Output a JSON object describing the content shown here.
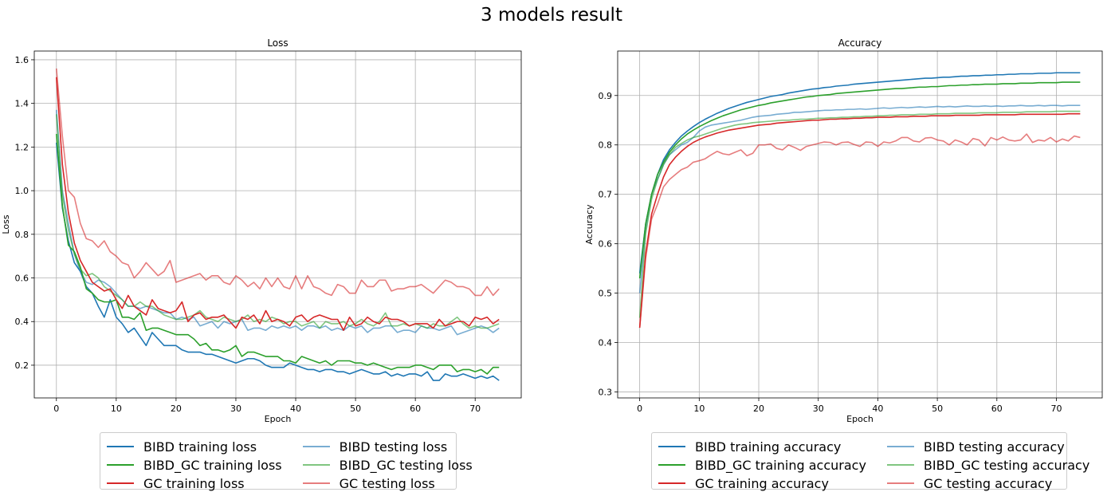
{
  "figure_title": "3 models result",
  "chart_data": [
    {
      "type": "line",
      "title": "Loss",
      "xlabel": "Epoch",
      "ylabel": "Loss",
      "xlim": [
        -3.7,
        77.7
      ],
      "ylim": [
        0.05,
        1.64
      ],
      "xticks": [
        0,
        10,
        20,
        30,
        40,
        50,
        60,
        70
      ],
      "yticks": [
        0.2,
        0.4,
        0.6,
        0.8,
        1.0,
        1.2,
        1.4,
        1.6
      ],
      "ytick_labels": [
        "0.2",
        "0.4",
        "0.6",
        "0.8",
        "1.0",
        "1.2",
        "1.4",
        "1.6"
      ],
      "grid": true,
      "legend_placement": "below plot, 2 columns",
      "series": [
        {
          "name": "BIBD training loss",
          "color": "#1f77b4",
          "alpha": 1.0,
          "values": [
            1.22,
            0.92,
            0.77,
            0.67,
            0.63,
            0.56,
            0.53,
            0.47,
            0.42,
            0.5,
            0.42,
            0.39,
            0.35,
            0.37,
            0.33,
            0.29,
            0.35,
            0.32,
            0.29,
            0.29,
            0.29,
            0.27,
            0.26,
            0.26,
            0.26,
            0.25,
            0.25,
            0.24,
            0.23,
            0.22,
            0.21,
            0.22,
            0.23,
            0.23,
            0.22,
            0.2,
            0.19,
            0.19,
            0.19,
            0.21,
            0.2,
            0.19,
            0.18,
            0.18,
            0.17,
            0.18,
            0.18,
            0.17,
            0.17,
            0.16,
            0.17,
            0.18,
            0.17,
            0.16,
            0.16,
            0.17,
            0.15,
            0.16,
            0.15,
            0.16,
            0.16,
            0.15,
            0.17,
            0.13,
            0.13,
            0.16,
            0.15,
            0.15,
            0.16,
            0.15,
            0.14,
            0.15,
            0.14,
            0.15,
            0.13
          ]
        },
        {
          "name": "BIBD_GC training loss",
          "color": "#2ca02c",
          "alpha": 1.0,
          "values": [
            1.26,
            0.93,
            0.75,
            0.72,
            0.65,
            0.55,
            0.53,
            0.5,
            0.49,
            0.49,
            0.5,
            0.42,
            0.42,
            0.41,
            0.44,
            0.36,
            0.37,
            0.37,
            0.36,
            0.35,
            0.34,
            0.34,
            0.34,
            0.32,
            0.29,
            0.3,
            0.27,
            0.27,
            0.26,
            0.27,
            0.29,
            0.24,
            0.26,
            0.26,
            0.25,
            0.24,
            0.24,
            0.24,
            0.22,
            0.22,
            0.21,
            0.24,
            0.23,
            0.22,
            0.21,
            0.22,
            0.2,
            0.22,
            0.22,
            0.22,
            0.21,
            0.21,
            0.2,
            0.21,
            0.2,
            0.19,
            0.18,
            0.19,
            0.19,
            0.19,
            0.2,
            0.2,
            0.19,
            0.18,
            0.2,
            0.2,
            0.2,
            0.17,
            0.18,
            0.18,
            0.17,
            0.18,
            0.16,
            0.19,
            0.19
          ]
        },
        {
          "name": "GC training loss",
          "color": "#d62728",
          "alpha": 1.0,
          "values": [
            1.52,
            1.12,
            0.9,
            0.76,
            0.68,
            0.63,
            0.58,
            0.56,
            0.54,
            0.55,
            0.5,
            0.46,
            0.52,
            0.47,
            0.45,
            0.43,
            0.5,
            0.46,
            0.45,
            0.44,
            0.45,
            0.49,
            0.4,
            0.43,
            0.44,
            0.41,
            0.42,
            0.42,
            0.43,
            0.4,
            0.37,
            0.42,
            0.41,
            0.43,
            0.39,
            0.45,
            0.4,
            0.41,
            0.4,
            0.38,
            0.42,
            0.43,
            0.4,
            0.42,
            0.43,
            0.42,
            0.41,
            0.41,
            0.36,
            0.42,
            0.38,
            0.39,
            0.42,
            0.4,
            0.39,
            0.42,
            0.41,
            0.41,
            0.4,
            0.38,
            0.39,
            0.39,
            0.39,
            0.37,
            0.41,
            0.38,
            0.39,
            0.4,
            0.4,
            0.38,
            0.42,
            0.41,
            0.42,
            0.39,
            0.41
          ]
        },
        {
          "name": "BIBD testing loss",
          "color": "#1f77b4",
          "alpha": 0.6,
          "values": [
            1.37,
            1.0,
            0.85,
            0.71,
            0.63,
            0.58,
            0.57,
            0.59,
            0.58,
            0.56,
            0.53,
            0.5,
            0.47,
            0.47,
            0.46,
            0.47,
            0.46,
            0.45,
            0.44,
            0.44,
            0.41,
            0.42,
            0.41,
            0.42,
            0.38,
            0.39,
            0.4,
            0.37,
            0.4,
            0.39,
            0.4,
            0.41,
            0.36,
            0.37,
            0.37,
            0.36,
            0.38,
            0.37,
            0.38,
            0.37,
            0.38,
            0.36,
            0.38,
            0.38,
            0.37,
            0.38,
            0.36,
            0.37,
            0.36,
            0.38,
            0.37,
            0.38,
            0.35,
            0.37,
            0.37,
            0.38,
            0.38,
            0.35,
            0.36,
            0.36,
            0.35,
            0.38,
            0.37,
            0.37,
            0.36,
            0.37,
            0.38,
            0.34,
            0.35,
            0.36,
            0.37,
            0.38,
            0.37,
            0.35,
            0.37
          ]
        },
        {
          "name": "BIBD_GC testing loss",
          "color": "#2ca02c",
          "alpha": 0.6,
          "values": [
            1.35,
            0.98,
            0.82,
            0.71,
            0.64,
            0.61,
            0.62,
            0.6,
            0.56,
            0.54,
            0.52,
            0.5,
            0.47,
            0.47,
            0.49,
            0.47,
            0.47,
            0.45,
            0.43,
            0.42,
            0.41,
            0.41,
            0.42,
            0.43,
            0.45,
            0.42,
            0.41,
            0.4,
            0.42,
            0.41,
            0.4,
            0.41,
            0.43,
            0.4,
            0.41,
            0.4,
            0.42,
            0.41,
            0.39,
            0.4,
            0.4,
            0.38,
            0.39,
            0.4,
            0.37,
            0.4,
            0.39,
            0.39,
            0.4,
            0.38,
            0.39,
            0.41,
            0.39,
            0.38,
            0.4,
            0.44,
            0.38,
            0.38,
            0.39,
            0.38,
            0.39,
            0.38,
            0.37,
            0.39,
            0.38,
            0.38,
            0.4,
            0.42,
            0.39,
            0.37,
            0.38,
            0.37,
            0.37,
            0.38,
            0.39
          ]
        },
        {
          "name": "GC testing loss",
          "color": "#d62728",
          "alpha": 0.6,
          "values": [
            1.56,
            1.25,
            1.0,
            0.97,
            0.85,
            0.78,
            0.77,
            0.74,
            0.77,
            0.72,
            0.7,
            0.67,
            0.66,
            0.6,
            0.63,
            0.67,
            0.64,
            0.61,
            0.63,
            0.68,
            0.58,
            0.59,
            0.6,
            0.61,
            0.62,
            0.59,
            0.61,
            0.61,
            0.58,
            0.57,
            0.61,
            0.59,
            0.56,
            0.58,
            0.55,
            0.6,
            0.56,
            0.6,
            0.56,
            0.55,
            0.61,
            0.55,
            0.61,
            0.56,
            0.55,
            0.53,
            0.52,
            0.57,
            0.56,
            0.53,
            0.53,
            0.59,
            0.56,
            0.56,
            0.59,
            0.59,
            0.54,
            0.55,
            0.55,
            0.56,
            0.56,
            0.57,
            0.55,
            0.53,
            0.56,
            0.59,
            0.58,
            0.56,
            0.56,
            0.55,
            0.52,
            0.52,
            0.56,
            0.52,
            0.55
          ]
        }
      ]
    },
    {
      "type": "line",
      "title": "Accuracy",
      "xlabel": "Epoch",
      "ylabel": "Accuracy",
      "xlim": [
        -3.7,
        77.7
      ],
      "ylim": [
        0.288,
        0.99
      ],
      "xticks": [
        0,
        10,
        20,
        30,
        40,
        50,
        60,
        70
      ],
      "yticks": [
        0.3,
        0.4,
        0.5,
        0.6,
        0.7,
        0.8,
        0.9
      ],
      "ytick_labels": [
        "0.3",
        "0.4",
        "0.5",
        "0.6",
        "0.7",
        "0.8",
        "0.9"
      ],
      "grid": true,
      "legend_placement": "below plot, 2 columns",
      "series": [
        {
          "name": "BIBD training accuracy",
          "color": "#1f77b4",
          "alpha": 1.0,
          "values": [
            0.54,
            0.64,
            0.7,
            0.74,
            0.77,
            0.79,
            0.805,
            0.818,
            0.828,
            0.837,
            0.845,
            0.852,
            0.858,
            0.864,
            0.869,
            0.874,
            0.878,
            0.882,
            0.886,
            0.889,
            0.892,
            0.895,
            0.898,
            0.9,
            0.902,
            0.905,
            0.907,
            0.909,
            0.911,
            0.913,
            0.914,
            0.916,
            0.917,
            0.919,
            0.92,
            0.921,
            0.923,
            0.924,
            0.925,
            0.926,
            0.927,
            0.928,
            0.929,
            0.93,
            0.931,
            0.932,
            0.933,
            0.934,
            0.935,
            0.935,
            0.936,
            0.937,
            0.937,
            0.938,
            0.939,
            0.939,
            0.94,
            0.94,
            0.941,
            0.941,
            0.942,
            0.942,
            0.943,
            0.943,
            0.944,
            0.944,
            0.944,
            0.945,
            0.945,
            0.945,
            0.946,
            0.946,
            0.946,
            0.946,
            0.946
          ]
        },
        {
          "name": "BIBD_GC training accuracy",
          "color": "#2ca02c",
          "alpha": 1.0,
          "values": [
            0.53,
            0.64,
            0.7,
            0.74,
            0.765,
            0.785,
            0.8,
            0.812,
            0.822,
            0.83,
            0.837,
            0.843,
            0.849,
            0.854,
            0.859,
            0.863,
            0.867,
            0.871,
            0.874,
            0.877,
            0.88,
            0.882,
            0.885,
            0.887,
            0.889,
            0.891,
            0.893,
            0.895,
            0.897,
            0.898,
            0.9,
            0.901,
            0.902,
            0.904,
            0.905,
            0.906,
            0.907,
            0.908,
            0.909,
            0.91,
            0.911,
            0.912,
            0.913,
            0.914,
            0.914,
            0.915,
            0.916,
            0.917,
            0.917,
            0.918,
            0.918,
            0.919,
            0.92,
            0.92,
            0.921,
            0.921,
            0.922,
            0.922,
            0.923,
            0.923,
            0.923,
            0.924,
            0.924,
            0.924,
            0.925,
            0.925,
            0.925,
            0.926,
            0.926,
            0.926,
            0.926,
            0.927,
            0.927,
            0.927,
            0.927
          ]
        },
        {
          "name": "GC training accuracy",
          "color": "#d62728",
          "alpha": 1.0,
          "values": [
            0.43,
            0.58,
            0.66,
            0.7,
            0.735,
            0.76,
            0.775,
            0.787,
            0.797,
            0.805,
            0.811,
            0.816,
            0.82,
            0.824,
            0.827,
            0.83,
            0.832,
            0.834,
            0.836,
            0.838,
            0.84,
            0.841,
            0.842,
            0.844,
            0.845,
            0.846,
            0.847,
            0.848,
            0.849,
            0.85,
            0.85,
            0.851,
            0.852,
            0.852,
            0.853,
            0.853,
            0.854,
            0.854,
            0.855,
            0.855,
            0.856,
            0.856,
            0.856,
            0.857,
            0.857,
            0.857,
            0.858,
            0.858,
            0.858,
            0.859,
            0.859,
            0.859,
            0.859,
            0.86,
            0.86,
            0.86,
            0.86,
            0.86,
            0.861,
            0.861,
            0.861,
            0.861,
            0.861,
            0.861,
            0.862,
            0.862,
            0.862,
            0.862,
            0.862,
            0.862,
            0.862,
            0.862,
            0.863,
            0.863,
            0.863
          ]
        },
        {
          "name": "BIBD testing accuracy",
          "color": "#1f77b4",
          "alpha": 0.6,
          "values": [
            0.5,
            0.63,
            0.7,
            0.73,
            0.76,
            0.78,
            0.79,
            0.8,
            0.805,
            0.815,
            0.828,
            0.836,
            0.84,
            0.842,
            0.844,
            0.846,
            0.848,
            0.85,
            0.853,
            0.856,
            0.858,
            0.859,
            0.86,
            0.862,
            0.863,
            0.864,
            0.866,
            0.866,
            0.867,
            0.868,
            0.869,
            0.87,
            0.87,
            0.871,
            0.871,
            0.872,
            0.872,
            0.873,
            0.872,
            0.873,
            0.874,
            0.875,
            0.874,
            0.875,
            0.876,
            0.875,
            0.876,
            0.877,
            0.876,
            0.877,
            0.878,
            0.877,
            0.878,
            0.877,
            0.878,
            0.879,
            0.878,
            0.878,
            0.879,
            0.878,
            0.879,
            0.878,
            0.879,
            0.879,
            0.88,
            0.879,
            0.879,
            0.88,
            0.879,
            0.88,
            0.88,
            0.879,
            0.88,
            0.88,
            0.88
          ]
        },
        {
          "name": "BIBD_GC testing accuracy",
          "color": "#2ca02c",
          "alpha": 0.6,
          "values": [
            0.45,
            0.62,
            0.69,
            0.73,
            0.76,
            0.78,
            0.795,
            0.803,
            0.81,
            0.815,
            0.818,
            0.822,
            0.826,
            0.83,
            0.834,
            0.837,
            0.84,
            0.842,
            0.843,
            0.845,
            0.846,
            0.847,
            0.848,
            0.849,
            0.85,
            0.85,
            0.851,
            0.852,
            0.852,
            0.853,
            0.854,
            0.854,
            0.855,
            0.855,
            0.856,
            0.856,
            0.857,
            0.857,
            0.858,
            0.858,
            0.859,
            0.859,
            0.86,
            0.86,
            0.861,
            0.861,
            0.861,
            0.862,
            0.862,
            0.862,
            0.863,
            0.863,
            0.863,
            0.864,
            0.864,
            0.864,
            0.864,
            0.865,
            0.865,
            0.865,
            0.865,
            0.866,
            0.866,
            0.866,
            0.866,
            0.867,
            0.867,
            0.867,
            0.867,
            0.867,
            0.868,
            0.868,
            0.868,
            0.868,
            0.868
          ]
        },
        {
          "name": "GC testing accuracy",
          "color": "#d62728",
          "alpha": 0.6,
          "values": [
            0.43,
            0.57,
            0.65,
            0.68,
            0.715,
            0.73,
            0.74,
            0.75,
            0.755,
            0.765,
            0.768,
            0.772,
            0.78,
            0.787,
            0.782,
            0.78,
            0.785,
            0.79,
            0.778,
            0.783,
            0.8,
            0.8,
            0.802,
            0.793,
            0.79,
            0.8,
            0.795,
            0.789,
            0.797,
            0.8,
            0.803,
            0.806,
            0.805,
            0.8,
            0.805,
            0.806,
            0.801,
            0.797,
            0.806,
            0.805,
            0.797,
            0.806,
            0.804,
            0.808,
            0.815,
            0.815,
            0.808,
            0.806,
            0.814,
            0.815,
            0.81,
            0.808,
            0.8,
            0.81,
            0.806,
            0.8,
            0.813,
            0.81,
            0.798,
            0.815,
            0.81,
            0.816,
            0.81,
            0.808,
            0.81,
            0.822,
            0.805,
            0.81,
            0.808,
            0.815,
            0.806,
            0.812,
            0.808,
            0.818,
            0.815
          ]
        }
      ]
    }
  ]
}
